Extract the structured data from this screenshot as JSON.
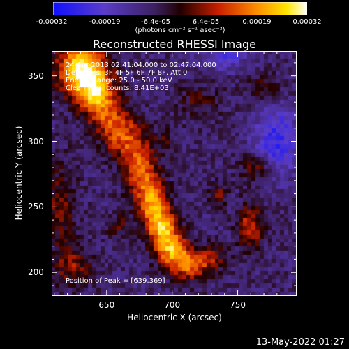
{
  "colorbar": {
    "ticks": [
      "-0.00032",
      "-0.00019",
      "-6.4e-05",
      "6.4e-05",
      "0.00019",
      "0.00032"
    ],
    "unit": "(photons cm⁻² s⁻¹ asec⁻²)",
    "min": -0.00032,
    "max": 0.00032
  },
  "info": {
    "time_range": "24-Apr-2013 02:41:04.000 to 02:47:04.000",
    "detectors": "Detectors: 3F 4F 5F 6F 7F 8F, Att 0",
    "energy": "Energy Range: 25.0 - 50.0 keV",
    "clean": "Clean    Total counts: 8.41E+03",
    "peak": "Position of Peak = [639,369]"
  },
  "timestamp": "13-May-2022 01:27",
  "chart_data": {
    "type": "heatmap",
    "title": "Reconstructed RHESSI Image",
    "xlabel": "Heliocentric X (arcsec)",
    "ylabel": "Heliocentric Y (arcsec)",
    "xlim": [
      608,
      795
    ],
    "ylim": [
      182,
      369
    ],
    "xticks": [
      650,
      700,
      750
    ],
    "yticks": [
      200,
      250,
      300,
      350
    ],
    "peak_position": [
      639,
      369
    ],
    "colormap": "blue-purple-red-yellow-white",
    "grid": false,
    "features": [
      {
        "x": 628,
        "y": 355,
        "sx": 12,
        "sy": 14,
        "value": 0.0003
      },
      {
        "x": 640,
        "y": 345,
        "sx": 10,
        "sy": 14,
        "value": 0.00025
      },
      {
        "x": 648,
        "y": 325,
        "sx": 10,
        "sy": 12,
        "value": 0.00018
      },
      {
        "x": 662,
        "y": 305,
        "sx": 11,
        "sy": 12,
        "value": 0.0002
      },
      {
        "x": 675,
        "y": 280,
        "sx": 9,
        "sy": 14,
        "value": 0.00022
      },
      {
        "x": 685,
        "y": 255,
        "sx": 8,
        "sy": 12,
        "value": 0.00026
      },
      {
        "x": 692,
        "y": 235,
        "sx": 8,
        "sy": 10,
        "value": 0.00028
      },
      {
        "x": 700,
        "y": 218,
        "sx": 9,
        "sy": 9,
        "value": 0.00026
      },
      {
        "x": 712,
        "y": 205,
        "sx": 10,
        "sy": 8,
        "value": 0.00022
      },
      {
        "x": 730,
        "y": 210,
        "sx": 8,
        "sy": 8,
        "value": 0.00012
      },
      {
        "x": 735,
        "y": 260,
        "sx": 5,
        "sy": 6,
        "value": 0.00012
      },
      {
        "x": 760,
        "y": 235,
        "sx": 7,
        "sy": 12,
        "value": 0.00018
      },
      {
        "x": 765,
        "y": 280,
        "sx": 8,
        "sy": 8,
        "value": 0.00014
      },
      {
        "x": 770,
        "y": 340,
        "sx": 10,
        "sy": 8,
        "value": 0.0001
      },
      {
        "x": 615,
        "y": 250,
        "sx": 8,
        "sy": 24,
        "value": 0.00012
      },
      {
        "x": 625,
        "y": 205,
        "sx": 10,
        "sy": 10,
        "value": 0.00014
      },
      {
        "x": 720,
        "y": 330,
        "sx": 12,
        "sy": 10,
        "value": 8e-05
      },
      {
        "x": 660,
        "y": 235,
        "sx": 6,
        "sy": 6,
        "value": 0.0001
      },
      {
        "x": 695,
        "y": 300,
        "sx": 6,
        "sy": 6,
        "value": 8e-05
      },
      {
        "x": 780,
        "y": 300,
        "sx": 12,
        "sy": 18,
        "value": -0.00018
      },
      {
        "x": 740,
        "y": 365,
        "sx": 14,
        "sy": 8,
        "value": -0.00012
      }
    ]
  }
}
